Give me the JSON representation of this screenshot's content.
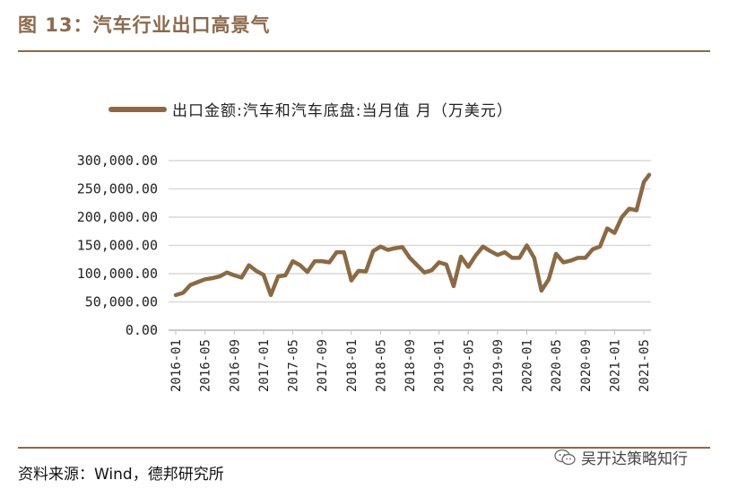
{
  "figure": {
    "title": "图 13：汽车行业出口高景气",
    "source": "资料来源：Wind，德邦研究所",
    "watermark": "吴开达策略知行",
    "watermark_icon": "wechat-icon"
  },
  "colors": {
    "accent": "#8c6a4b",
    "series": "#8b6a43",
    "grid": "#d9d9d9"
  },
  "chart_data": {
    "type": "line",
    "title": "",
    "xlabel": "",
    "ylabel": "",
    "ylim": [
      0,
      300000
    ],
    "yticks": [
      0,
      50000,
      100000,
      150000,
      200000,
      250000,
      300000
    ],
    "ytick_labels": [
      "0.00",
      "50,000.00",
      "100,000.00",
      "150,000.00",
      "200,000.00",
      "250,000.00",
      "300,000.00"
    ],
    "xtick_labels": [
      "2016-01",
      "2016-05",
      "2016-09",
      "2017-01",
      "2017-05",
      "2017-09",
      "2018-01",
      "2018-05",
      "2018-09",
      "2019-01",
      "2019-05",
      "2019-09",
      "2020-01",
      "2020-05",
      "2020-09",
      "2021-01",
      "2021-05"
    ],
    "grid": "horizontal",
    "legend_position": "top",
    "series": [
      {
        "name": "出口金额:汽车和汽车底盘:当月值 月（万美元）",
        "x": [
          "2016-01",
          "2016-02",
          "2016-03",
          "2016-04",
          "2016-05",
          "2016-06",
          "2016-07",
          "2016-08",
          "2016-09",
          "2016-10",
          "2016-11",
          "2016-12",
          "2017-01",
          "2017-02",
          "2017-03",
          "2017-04",
          "2017-05",
          "2017-06",
          "2017-07",
          "2017-08",
          "2017-09",
          "2017-10",
          "2017-11",
          "2017-12",
          "2018-01",
          "2018-02",
          "2018-03",
          "2018-04",
          "2018-05",
          "2018-06",
          "2018-07",
          "2018-08",
          "2018-09",
          "2018-10",
          "2018-11",
          "2018-12",
          "2019-01",
          "2019-02",
          "2019-03",
          "2019-04",
          "2019-05",
          "2019-06",
          "2019-07",
          "2019-08",
          "2019-09",
          "2019-10",
          "2019-11",
          "2019-12",
          "2020-01",
          "2020-02",
          "2020-03",
          "2020-04",
          "2020-05",
          "2020-06",
          "2020-07",
          "2020-08",
          "2020-09",
          "2020-10",
          "2020-11",
          "2020-12",
          "2021-01",
          "2021-02",
          "2021-03",
          "2021-04",
          "2021-05"
        ],
        "values": [
          62000,
          66000,
          80000,
          85000,
          90000,
          92000,
          95000,
          102000,
          97000,
          93000,
          115000,
          105000,
          98000,
          62000,
          95000,
          97000,
          122000,
          115000,
          103000,
          122000,
          122000,
          120000,
          138000,
          138000,
          88000,
          105000,
          104000,
          140000,
          148000,
          142000,
          145000,
          147000,
          128000,
          115000,
          102000,
          106000,
          120000,
          116000,
          78000,
          130000,
          112000,
          132000,
          148000,
          140000,
          133000,
          138000,
          128000,
          128000,
          150000,
          128000,
          70000,
          90000,
          135000,
          120000,
          123000,
          128000,
          128000,
          143000,
          148000,
          180000,
          172000,
          200000,
          215000,
          212000,
          262000
        ]
      }
    ],
    "x_end_value": 275000
  }
}
